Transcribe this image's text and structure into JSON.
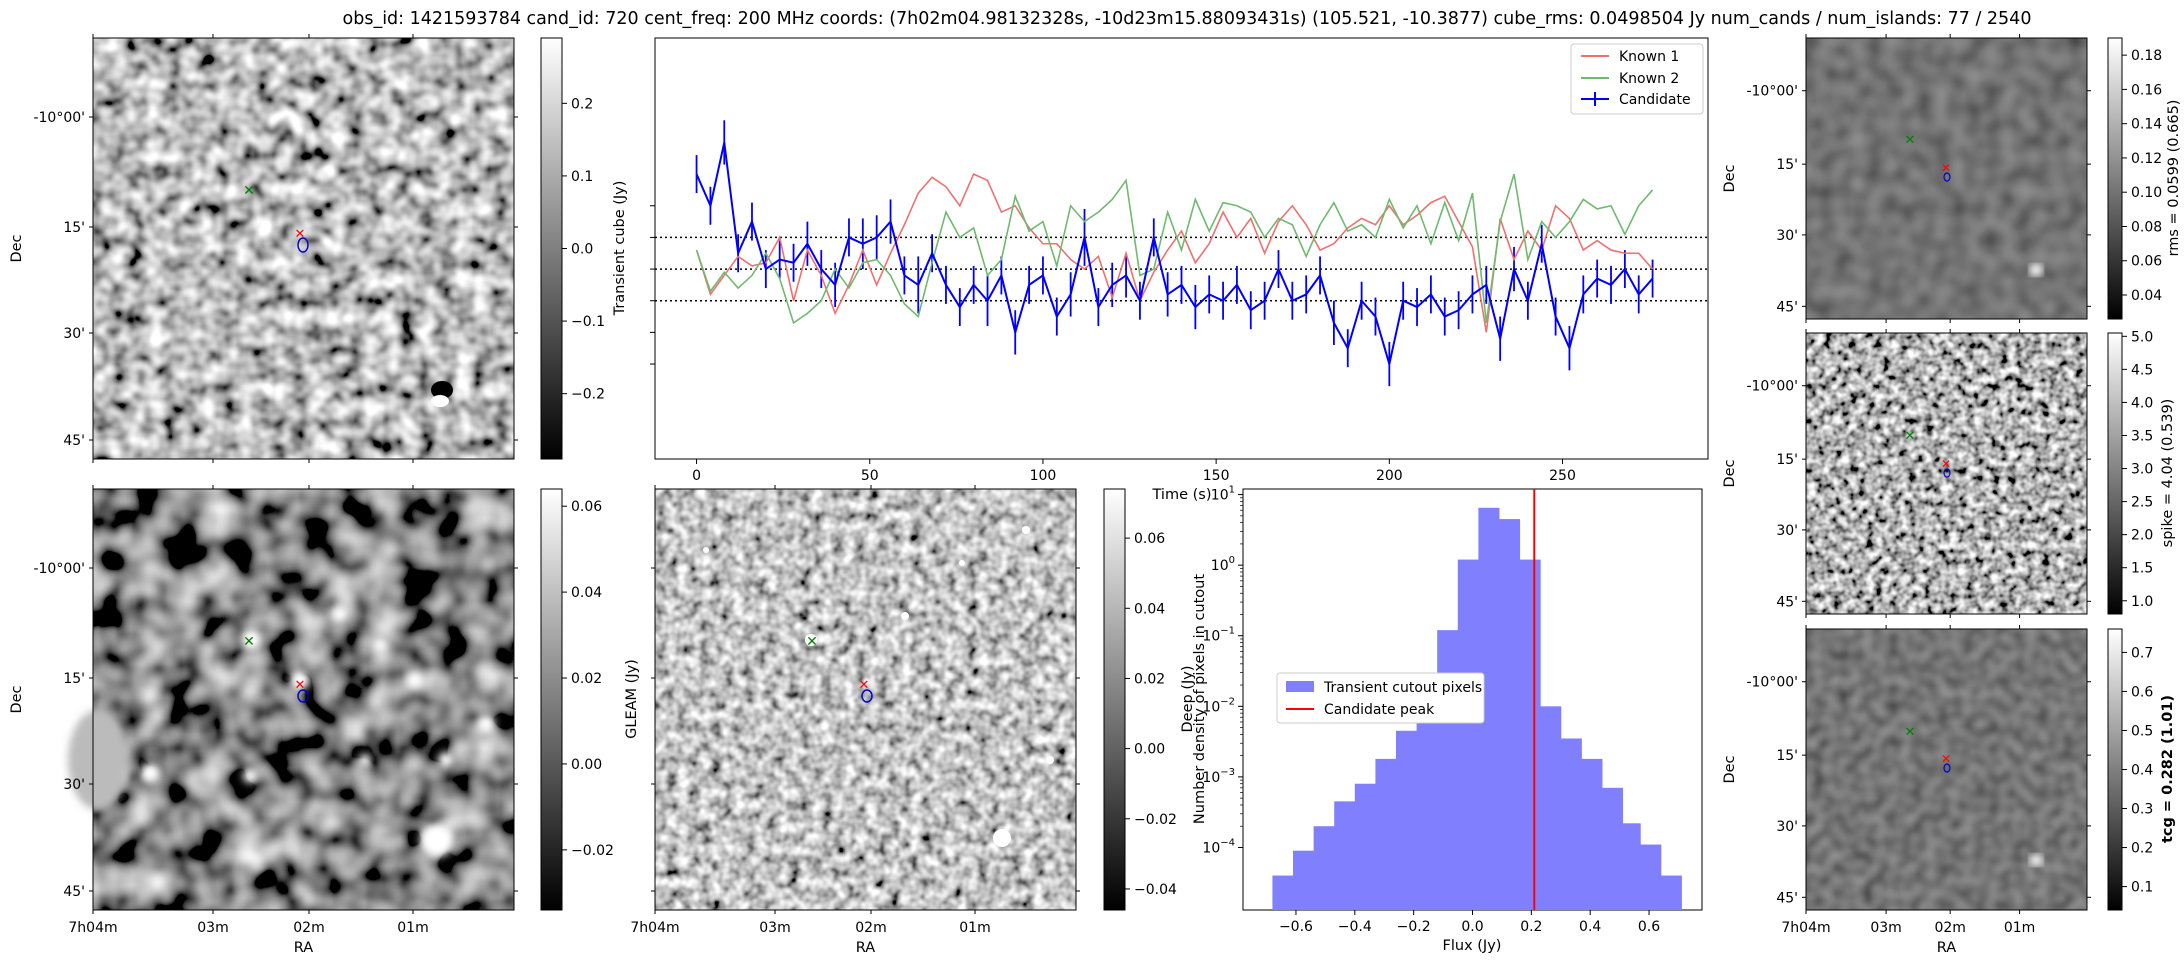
{
  "suptitle": "obs_id: 1421593784 cand_id: 720 cent_freq: 200 MHz coords: (7h02m04.98132328s, -10d23m15.88093431s) (105.521, -10.3877) cube_rms: 0.0498504 Jy num_cands / num_islands: 77 / 2540",
  "sky_axes": {
    "xlabel": "RA",
    "ylabel": "Dec",
    "ra_ticks": [
      "7h04m",
      "03m",
      "01m"
    ],
    "ra_tick_two": "02",
    "ra_tick_two_sup": "m",
    "dec_ticks": [
      "-10°00'",
      "15'",
      "30'",
      "45'"
    ]
  },
  "markers": {
    "known_color": "#008000",
    "candidate_color": "#ff0000",
    "contour_color": "#0000cc"
  },
  "colors": {
    "known1": "#f07070",
    "known2": "#6fba6f",
    "candidate": "#0000ff",
    "hist_fill": "#8080ff",
    "peak_line": "#ff0000"
  },
  "panels": {
    "transient": {
      "cbar_label": "Transient cube (Jy)",
      "cbar_ticks": [
        "0.2",
        "0.1",
        "0.0",
        "−0.1",
        "−0.2"
      ],
      "cbar_range": [
        -0.29,
        0.29
      ]
    },
    "gleam": {
      "cbar_label": "GLEAM (Jy)",
      "cbar_ticks": [
        "0.06",
        "0.04",
        "0.02",
        "0.00",
        "−0.02"
      ],
      "cbar_range": [
        -0.034,
        0.064
      ]
    },
    "deep": {
      "cbar_label": "Deep (Jy)",
      "cbar_ticks": [
        "0.06",
        "0.04",
        "0.02",
        "0.00",
        "−0.02",
        "−0.04"
      ],
      "cbar_range": [
        -0.046,
        0.074
      ]
    },
    "rms": {
      "cbar_label": "rms = 0.0599 (0.665)",
      "cbar_ticks": [
        "0.18",
        "0.16",
        "0.14",
        "0.12",
        "0.10",
        "0.08",
        "0.06",
        "0.04"
      ],
      "cbar_range": [
        0.026,
        0.19
      ]
    },
    "spike": {
      "cbar_label": "spike = 4.04 (0.539)",
      "cbar_ticks": [
        "5.0",
        "4.5",
        "4.0",
        "3.5",
        "3.0",
        "2.5",
        "2.0",
        "1.5",
        "1.0"
      ],
      "cbar_range": [
        0.8,
        5.05
      ]
    },
    "tcg": {
      "cbar_label": "tcg = 0.282 (1.01)",
      "cbar_ticks": [
        "0.7",
        "0.6",
        "0.5",
        "0.4",
        "0.3",
        "0.2",
        "0.1"
      ],
      "cbar_range": [
        0.04,
        0.76
      ]
    }
  },
  "chart_data": [
    {
      "type": "line",
      "name": "lightcurve",
      "xlabel": "Time (s)",
      "ylabel": "",
      "xlim": [
        -12,
        292
      ],
      "ylim": [
        -0.6,
        0.73
      ],
      "xticks": [
        0,
        50,
        100,
        150,
        200,
        250
      ],
      "yticks_hidden": true,
      "hlines": [
        0.1,
        0.0,
        -0.1
      ],
      "x": [
        0,
        4,
        8,
        12,
        16,
        20,
        24,
        28,
        32,
        36,
        40,
        44,
        48,
        52,
        56,
        60,
        64,
        68,
        72,
        76,
        80,
        84,
        88,
        92,
        96,
        100,
        104,
        108,
        112,
        116,
        120,
        124,
        128,
        132,
        136,
        140,
        144,
        148,
        152,
        156,
        160,
        164,
        168,
        172,
        176,
        180,
        184,
        188,
        192,
        196,
        200,
        204,
        208,
        212,
        216,
        220,
        224,
        228,
        232,
        236,
        240,
        244,
        248,
        252,
        256,
        260,
        264,
        268,
        272,
        276
      ],
      "legend": [
        "Known 1",
        "Known 2",
        "Candidate"
      ],
      "series": [
        {
          "name": "Known 1",
          "values": [
            0.06,
            -0.08,
            -0.02,
            0.04,
            0.01,
            0.02,
            0.1,
            -0.1,
            0.06,
            -0.02,
            -0.14,
            -0.05,
            0.06,
            -0.05,
            0.05,
            0.14,
            0.24,
            0.29,
            0.26,
            0.2,
            0.3,
            0.28,
            0.18,
            0.2,
            0.13,
            0.08,
            0.08,
            0.03,
            0.0,
            0.04,
            -0.09,
            0.05,
            -0.1,
            -0.01,
            0.06,
            0.12,
            0.02,
            0.08,
            0.18,
            0.1,
            0.16,
            0.05,
            0.15,
            0.2,
            0.14,
            0.06,
            0.08,
            0.13,
            0.16,
            0.14,
            0.2,
            0.14,
            0.17,
            0.21,
            0.23,
            0.15,
            0.07,
            -0.2,
            0.16,
            0.03,
            0.12,
            0.06,
            0.2,
            0.16,
            0.06,
            0.09,
            0.06,
            0.05,
            0.05,
            0.0
          ]
        },
        {
          "name": "Known 2",
          "values": [
            0.06,
            -0.07,
            -0.01,
            -0.06,
            -0.02,
            0.05,
            -0.03,
            -0.17,
            -0.14,
            -0.1,
            0.0,
            -0.06,
            0.02,
            0.03,
            -0.02,
            -0.11,
            -0.15,
            0.02,
            0.18,
            0.1,
            0.13,
            -0.02,
            0.03,
            0.23,
            0.12,
            0.15,
            0.01,
            0.2,
            0.15,
            0.18,
            0.22,
            0.28,
            -0.02,
            0.0,
            0.18,
            0.06,
            0.22,
            0.12,
            0.21,
            0.2,
            0.18,
            0.1,
            0.16,
            0.14,
            0.04,
            0.14,
            0.21,
            0.12,
            0.14,
            0.1,
            0.22,
            0.13,
            0.2,
            0.08,
            0.21,
            0.09,
            0.24,
            -0.17,
            0.15,
            0.3,
            0.03,
            0.15,
            0.1,
            0.15,
            0.22,
            0.19,
            0.2,
            0.11,
            0.2,
            0.25
          ]
        },
        {
          "name": "Candidate",
          "values": [
            0.3,
            0.2,
            0.4,
            0.05,
            0.15,
            0.0,
            0.03,
            0.02,
            0.08,
            0.0,
            -0.05,
            0.1,
            0.08,
            0.1,
            0.15,
            -0.02,
            -0.05,
            0.05,
            -0.05,
            -0.12,
            -0.05,
            -0.1,
            -0.02,
            -0.2,
            -0.05,
            -0.02,
            -0.15,
            -0.08,
            0.1,
            -0.12,
            -0.05,
            -0.02,
            -0.1,
            0.1,
            -0.08,
            -0.05,
            -0.12,
            -0.08,
            -0.1,
            -0.05,
            -0.13,
            -0.1,
            0.0,
            -0.1,
            -0.08,
            -0.02,
            -0.17,
            -0.25,
            -0.1,
            -0.15,
            -0.3,
            -0.1,
            -0.12,
            -0.08,
            -0.15,
            -0.13,
            -0.08,
            -0.05,
            -0.22,
            0.0,
            -0.1,
            0.08,
            -0.15,
            -0.25,
            -0.08,
            -0.03,
            -0.05,
            0.0,
            -0.08,
            -0.03
          ]
        }
      ],
      "candidate_errors": [
        0.06,
        0.06,
        0.07,
        0.06,
        0.06,
        0.06,
        0.06,
        0.06,
        0.07,
        0.06,
        0.07,
        0.06,
        0.08,
        0.07,
        0.07,
        0.06,
        0.09,
        0.06,
        0.06,
        0.06,
        0.06,
        0.08,
        0.06,
        0.07,
        0.06,
        0.06,
        0.06,
        0.07,
        0.09,
        0.06,
        0.07,
        0.07,
        0.06,
        0.06,
        0.07,
        0.06,
        0.07,
        0.06,
        0.06,
        0.06,
        0.06,
        0.06,
        0.06,
        0.06,
        0.06,
        0.06,
        0.07,
        0.06,
        0.06,
        0.06,
        0.07,
        0.06,
        0.06,
        0.06,
        0.06,
        0.06,
        0.06,
        0.06,
        0.07,
        0.07,
        0.06,
        0.06,
        0.06,
        0.07,
        0.06,
        0.06,
        0.06,
        0.06,
        0.06,
        0.06
      ]
    },
    {
      "type": "bar",
      "name": "flux_histogram",
      "xlabel": "Flux (Jy)",
      "ylabel": "Number density of pixels in cutout",
      "yscale": "log",
      "xlim": [
        -0.78,
        0.78
      ],
      "ylim": [
        1.3e-05,
        12
      ],
      "xticks": [
        -0.6,
        -0.4,
        -0.2,
        0.0,
        0.2,
        0.4,
        0.6
      ],
      "xtick_labels": [
        "−0.6",
        "−0.4",
        "−0.2",
        "0.0",
        "0.2",
        "0.4",
        "0.6"
      ],
      "ytick_exponents": [
        -4,
        -3,
        -2,
        -1,
        0,
        1
      ],
      "bin_edges": [
        -0.68,
        -0.61,
        -0.54,
        -0.47,
        -0.4,
        -0.33,
        -0.26,
        -0.19,
        -0.12,
        -0.05,
        0.02,
        0.09,
        0.16,
        0.23,
        0.3,
        0.37,
        0.44,
        0.51,
        0.57,
        0.64,
        0.71
      ],
      "values": [
        4e-05,
        9e-05,
        0.0002,
        0.00045,
        0.0008,
        0.0018,
        0.0045,
        0.018,
        0.12,
        1.2,
        6.5,
        4.5,
        1.2,
        0.01,
        0.0035,
        0.0018,
        0.0007,
        0.00022,
        0.00011,
        4e-05
      ],
      "candidate_peak": 0.21,
      "legend": [
        "Transient cutout pixels",
        "Candidate peak"
      ]
    }
  ]
}
